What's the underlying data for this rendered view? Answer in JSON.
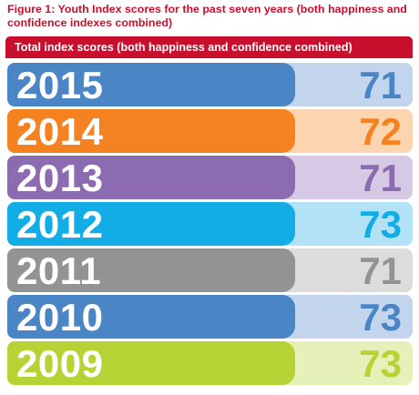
{
  "figure_title": "Figure 1: Youth Index scores for the past seven years (both happiness and confidence indexes combined)",
  "header_label": "Total index scores (both happiness and confidence combined)",
  "chart_data": {
    "type": "bar",
    "orientation": "horizontal",
    "title": "Figure 1: Youth Index scores for the past seven years (both happiness and confidence indexes combined)",
    "subtitle": "Total index scores (both happiness and confidence combined)",
    "categories": [
      "2015",
      "2014",
      "2013",
      "2012",
      "2011",
      "2010",
      "2009"
    ],
    "values": [
      71,
      72,
      71,
      73,
      71,
      73,
      73
    ],
    "data_labels": [
      "71",
      "72",
      "71",
      "73",
      "71",
      "73",
      "73"
    ],
    "xlim": [
      0,
      100
    ],
    "grid": false,
    "legend": "none",
    "bar_colors": [
      "#4a86c5",
      "#f58220",
      "#8c6bb1",
      "#12ade6",
      "#939393",
      "#4a86c5",
      "#b5d334"
    ],
    "track_colors": [
      "#c3d5ed",
      "#fcd4b0",
      "#d6c9e6",
      "#b3e2f7",
      "#dcdcdc",
      "#c3d5ed",
      "#e6f1b9"
    ],
    "score_colors": [
      "#4a86c5",
      "#f58220",
      "#8c6bb1",
      "#12ade6",
      "#939393",
      "#4a86c5",
      "#b5d334"
    ]
  }
}
